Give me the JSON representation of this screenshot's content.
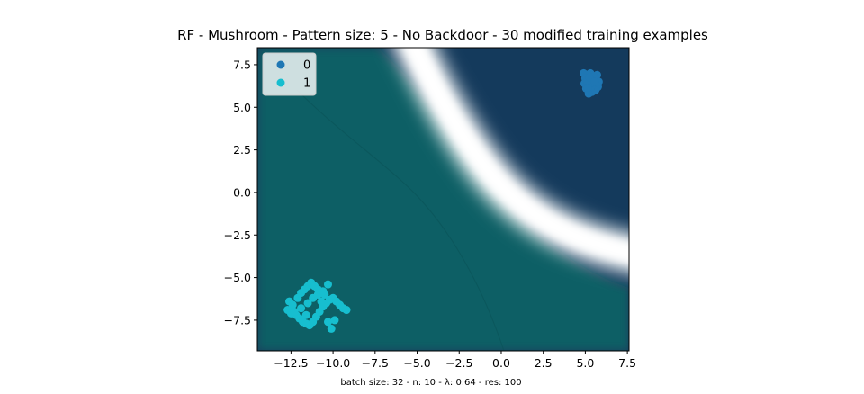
{
  "chart_data": {
    "type": "scatter",
    "title": "RF - Mushroom - Pattern size: 5 - No Backdoor - 30 modified training examples",
    "footnote": "batch size: 32 - n: 10 - λ: 0.64 - res: 100",
    "xlim": [
      -14.5,
      7.6
    ],
    "ylim": [
      -9.3,
      8.5
    ],
    "xticks": [
      -12.5,
      -10.0,
      -7.5,
      -5.0,
      -2.5,
      0.0,
      2.5,
      5.0,
      7.5
    ],
    "xtick_labels": [
      "−12.5",
      "−10.0",
      "−7.5",
      "−5.0",
      "−2.5",
      "0.0",
      "2.5",
      "5.0",
      "7.5"
    ],
    "yticks": [
      -7.5,
      -5.0,
      -2.5,
      0.0,
      2.5,
      5.0,
      7.5
    ],
    "ytick_labels": [
      "−7.5",
      "−5.0",
      "−2.5",
      "0.0",
      "2.5",
      "5.0",
      "7.5"
    ],
    "grid": false,
    "legend_position": "top-left",
    "background": "decision-surface",
    "region_colors": {
      "class0": "#143a5c",
      "class1": "#0d5f65",
      "boundary": "#ffffff"
    },
    "series": [
      {
        "name": "0",
        "color": "#1f77b4",
        "x": [
          4.9,
          5.1,
          5.3,
          5.5,
          5.7,
          5.0,
          5.2,
          5.4,
          5.6,
          5.8,
          4.95,
          5.15,
          5.35,
          5.55,
          5.75,
          5.05,
          5.25,
          5.45,
          5.65,
          5.2,
          5.4,
          5.6,
          5.3,
          5.5,
          5.1,
          5.35,
          5.45,
          5.25,
          5.55,
          5.15
        ],
        "y": [
          7.0,
          6.9,
          7.0,
          6.8,
          6.9,
          6.7,
          6.6,
          6.7,
          6.6,
          6.5,
          6.4,
          6.3,
          6.4,
          6.3,
          6.2,
          6.1,
          6.0,
          6.2,
          6.1,
          5.8,
          5.9,
          6.0,
          6.5,
          6.8,
          6.55,
          6.2,
          6.45,
          6.75,
          6.5,
          6.15
        ]
      },
      {
        "name": "1",
        "color": "#17becf",
        "x": [
          -12.6,
          -12.4,
          -12.7,
          -12.2,
          -12.0,
          -11.8,
          -11.6,
          -11.4,
          -11.2,
          -11.0,
          -10.8,
          -10.6,
          -10.4,
          -10.2,
          -10.0,
          -9.8,
          -9.6,
          -9.4,
          -9.2,
          -12.5,
          -12.1,
          -11.9,
          -11.7,
          -11.5,
          -11.3,
          -11.1,
          -10.9,
          -10.5,
          -10.3,
          -10.1,
          -9.9,
          -11.9,
          -11.5,
          -11.2,
          -10.9,
          -10.6,
          -10.3,
          -12.3,
          -11.6,
          -10.7
        ],
        "y": [
          -6.4,
          -6.6,
          -6.9,
          -7.2,
          -7.4,
          -7.6,
          -7.7,
          -7.8,
          -7.6,
          -7.3,
          -7.0,
          -6.7,
          -6.5,
          -6.3,
          -6.2,
          -6.4,
          -6.6,
          -6.8,
          -6.9,
          -7.1,
          -6.2,
          -5.9,
          -5.7,
          -5.5,
          -5.3,
          -5.5,
          -5.7,
          -6.0,
          -7.6,
          -8.0,
          -7.5,
          -6.8,
          -6.5,
          -6.2,
          -6.0,
          -5.8,
          -5.4,
          -7.0,
          -7.2,
          -6.4
        ]
      }
    ]
  }
}
